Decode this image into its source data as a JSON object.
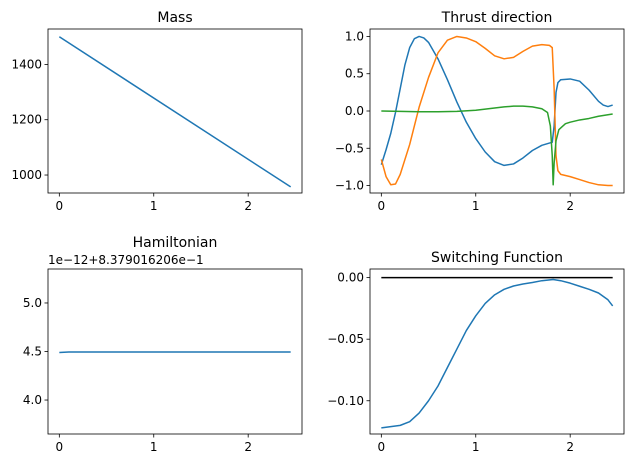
{
  "chart_data": [
    {
      "id": "mass",
      "type": "line",
      "title": "Mass",
      "xlabel": "",
      "ylabel": "",
      "offset_text": "",
      "xlim": [
        -0.12,
        2.57
      ],
      "ylim": [
        935,
        1528
      ],
      "xticks": [
        0,
        1,
        2
      ],
      "xtick_labels": [
        "0",
        "1",
        "2"
      ],
      "yticks": [
        1000,
        1200,
        1400
      ],
      "ytick_labels": [
        "1000",
        "1200",
        "1400"
      ],
      "series": [
        {
          "color": "#1f77b4",
          "x": [
            0,
            2.45
          ],
          "y": [
            1500,
            957
          ]
        }
      ]
    },
    {
      "id": "thrust",
      "type": "line",
      "title": "Thrust direction",
      "xlabel": "",
      "ylabel": "",
      "offset_text": "",
      "xlim": [
        -0.12,
        2.57
      ],
      "ylim": [
        -1.1,
        1.1
      ],
      "xticks": [
        0,
        1,
        2
      ],
      "xtick_labels": [
        "0",
        "1",
        "2"
      ],
      "yticks": [
        -1.0,
        -0.5,
        0.0,
        0.5,
        1.0
      ],
      "ytick_labels": [
        "−1.0",
        "−0.5",
        "0.0",
        "0.5",
        "1.0"
      ],
      "series": [
        {
          "color": "#1f77b4",
          "x": [
            0,
            0.05,
            0.1,
            0.15,
            0.2,
            0.25,
            0.3,
            0.35,
            0.4,
            0.45,
            0.5,
            0.6,
            0.7,
            0.8,
            0.9,
            1.0,
            1.1,
            1.2,
            1.3,
            1.4,
            1.5,
            1.6,
            1.7,
            1.78,
            1.81,
            1.83,
            1.85,
            1.87,
            1.9,
            2.0,
            2.1,
            2.2,
            2.3,
            2.35,
            2.4,
            2.45
          ],
          "y": [
            -0.72,
            -0.52,
            -0.3,
            -0.02,
            0.3,
            0.62,
            0.85,
            0.97,
            1.0,
            0.98,
            0.92,
            0.7,
            0.42,
            0.12,
            -0.15,
            -0.37,
            -0.55,
            -0.68,
            -0.73,
            -0.71,
            -0.63,
            -0.53,
            -0.46,
            -0.43,
            -0.42,
            -0.2,
            0.25,
            0.38,
            0.42,
            0.43,
            0.4,
            0.28,
            0.13,
            0.08,
            0.06,
            0.08
          ]
        },
        {
          "color": "#ff7f0e",
          "x": [
            0,
            0.05,
            0.1,
            0.15,
            0.2,
            0.3,
            0.4,
            0.5,
            0.6,
            0.7,
            0.8,
            0.9,
            1.0,
            1.1,
            1.2,
            1.3,
            1.4,
            1.5,
            1.6,
            1.7,
            1.78,
            1.81,
            1.83,
            1.85,
            1.87,
            1.9,
            2.0,
            2.1,
            2.2,
            2.3,
            2.4,
            2.45
          ],
          "y": [
            -0.65,
            -0.88,
            -0.99,
            -0.98,
            -0.85,
            -0.45,
            0.05,
            0.45,
            0.78,
            0.95,
            1.0,
            0.98,
            0.93,
            0.84,
            0.74,
            0.7,
            0.72,
            0.8,
            0.87,
            0.89,
            0.88,
            0.85,
            0.3,
            -0.6,
            -0.8,
            -0.85,
            -0.88,
            -0.92,
            -0.96,
            -0.99,
            -1.0,
            -1.0
          ]
        },
        {
          "color": "#2ca02c",
          "x": [
            0,
            0.2,
            0.4,
            0.6,
            0.8,
            1.0,
            1.1,
            1.2,
            1.3,
            1.4,
            1.5,
            1.6,
            1.7,
            1.76,
            1.79,
            1.81,
            1.82,
            1.83,
            1.85,
            1.88,
            1.95,
            2.0,
            2.1,
            2.2,
            2.3,
            2.4,
            2.45
          ],
          "y": [
            0.0,
            -0.005,
            -0.01,
            -0.01,
            -0.005,
            0.01,
            0.025,
            0.04,
            0.055,
            0.065,
            0.065,
            0.055,
            0.03,
            -0.02,
            -0.2,
            -0.6,
            -0.99,
            -0.7,
            -0.4,
            -0.25,
            -0.17,
            -0.15,
            -0.12,
            -0.1,
            -0.07,
            -0.05,
            -0.04
          ]
        }
      ]
    },
    {
      "id": "hamiltonian",
      "type": "line",
      "title": "Hamiltonian",
      "xlabel": "",
      "ylabel": "",
      "offset_text": "1e−12+8.379016206e−1",
      "xlim": [
        -0.12,
        2.57
      ],
      "ylim": [
        3.65,
        5.35
      ],
      "xticks": [
        0,
        1,
        2
      ],
      "xtick_labels": [
        "0",
        "1",
        "2"
      ],
      "yticks": [
        4.0,
        4.5,
        5.0
      ],
      "ytick_labels": [
        "4.0",
        "4.5",
        "5.0"
      ],
      "series": [
        {
          "color": "#1f77b4",
          "x": [
            0,
            0.1,
            2.45
          ],
          "y": [
            4.49,
            4.495,
            4.495
          ]
        }
      ]
    },
    {
      "id": "switching",
      "type": "line",
      "title": "Switching Function",
      "xlabel": "",
      "ylabel": "",
      "offset_text": "",
      "xlim": [
        -0.12,
        2.57
      ],
      "ylim": [
        -0.127,
        0.007
      ],
      "xticks": [
        0,
        1,
        2
      ],
      "xtick_labels": [
        "0",
        "1",
        "2"
      ],
      "yticks": [
        -0.1,
        -0.05,
        0.0
      ],
      "ytick_labels": [
        "−0.10",
        "−0.05",
        "0.00"
      ],
      "series": [
        {
          "color": "#1f77b4",
          "x": [
            0,
            0.1,
            0.2,
            0.3,
            0.4,
            0.5,
            0.6,
            0.7,
            0.8,
            0.9,
            1.0,
            1.1,
            1.2,
            1.3,
            1.4,
            1.5,
            1.6,
            1.7,
            1.82,
            1.9,
            2.0,
            2.1,
            2.2,
            2.3,
            2.4,
            2.45
          ],
          "y": [
            -0.122,
            -0.121,
            -0.12,
            -0.117,
            -0.11,
            -0.1,
            -0.088,
            -0.073,
            -0.058,
            -0.043,
            -0.031,
            -0.021,
            -0.014,
            -0.0095,
            -0.0068,
            -0.0052,
            -0.004,
            -0.0025,
            -0.0015,
            -0.0025,
            -0.0045,
            -0.007,
            -0.0095,
            -0.0125,
            -0.018,
            -0.023
          ]
        },
        {
          "color": "#000000",
          "x": [
            0,
            2.45
          ],
          "y": [
            0,
            0
          ]
        }
      ]
    }
  ]
}
